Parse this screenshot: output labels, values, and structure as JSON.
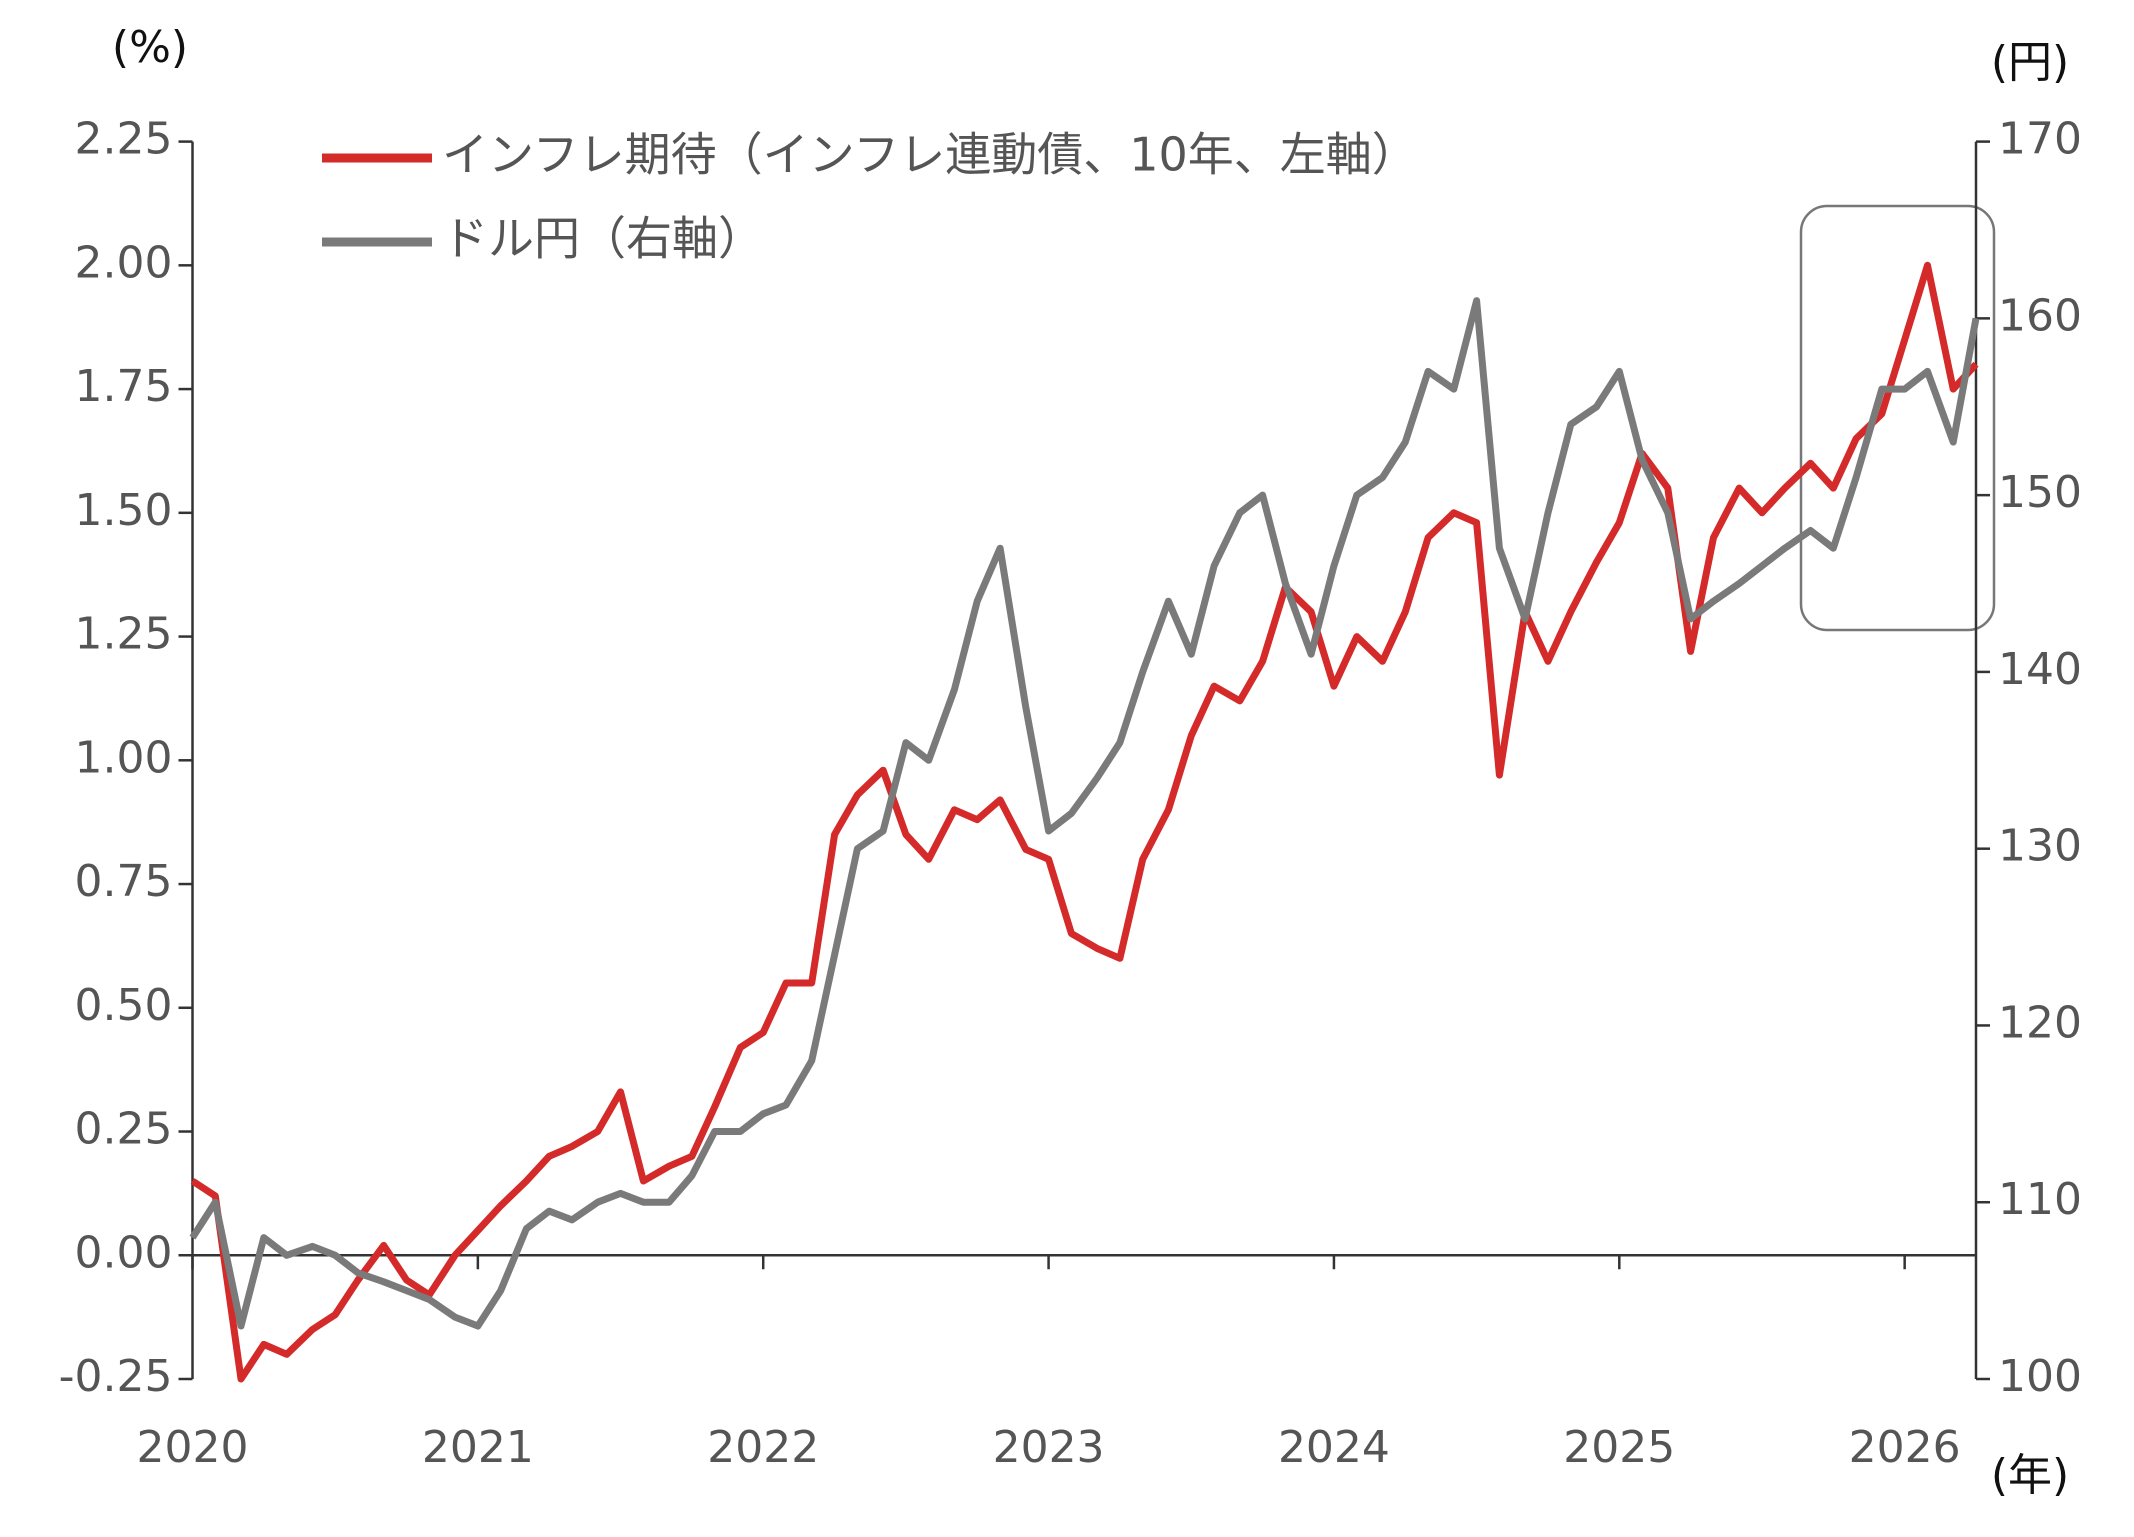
{
  "chart_data": {
    "type": "line",
    "y_label": "(%)",
    "y2_label": "(円)",
    "x_label": "(年)",
    "legend": "upper left",
    "x": [
      2020.0,
      2020.08,
      2020.17,
      2020.25,
      2020.33,
      2020.42,
      2020.5,
      2020.58,
      2020.67,
      2020.75,
      2020.83,
      2020.92,
      2021.0,
      2021.08,
      2021.17,
      2021.25,
      2021.33,
      2021.42,
      2021.5,
      2021.58,
      2021.67,
      2021.75,
      2021.83,
      2021.92,
      2022.0,
      2022.08,
      2022.17,
      2022.25,
      2022.33,
      2022.42,
      2022.5,
      2022.58,
      2022.67,
      2022.75,
      2022.83,
      2022.92,
      2023.0,
      2023.08,
      2023.17,
      2023.25,
      2023.33,
      2023.42,
      2023.5,
      2023.58,
      2023.67,
      2023.75,
      2023.83,
      2023.92,
      2024.0,
      2024.08,
      2024.17,
      2024.25,
      2024.33,
      2024.42,
      2024.5,
      2024.58,
      2024.67,
      2024.75,
      2024.83,
      2024.92,
      2025.0,
      2025.08,
      2025.17,
      2025.25,
      2025.33,
      2025.42,
      2025.5,
      2025.58,
      2025.67,
      2025.75,
      2025.83,
      2025.92,
      2026.0,
      2026.08,
      2026.17,
      2026.25
    ],
    "xlim": [
      2020,
      2026.25
    ],
    "xticks": [
      2020,
      2021,
      2022,
      2023,
      2024,
      2025,
      2026
    ],
    "ylim": [
      -0.25,
      2.25
    ],
    "yticks": [
      {
        "value": -0.25,
        "label": "-0.25"
      },
      {
        "value": 0,
        "label": "0.00"
      },
      0.25,
      {
        "value": 0.5,
        "label": "0.50"
      },
      0.75,
      {
        "value": 1,
        "label": "1.00"
      },
      1.25,
      {
        "value": 1.5,
        "label": "1.50"
      },
      1.75,
      {
        "value": 2,
        "label": "2.00"
      },
      2.25
    ],
    "y2lim": [
      100,
      170
    ],
    "y2ticks": [
      100,
      110,
      120,
      130,
      140,
      150,
      160,
      170
    ],
    "series": [
      {
        "name": "インフレ期待（インフレ連動債、10年、左軸）",
        "color": "#d42a2a",
        "values": [
          0.15,
          0.12,
          -0.25,
          -0.18,
          -0.2,
          -0.15,
          -0.12,
          -0.05,
          0.02,
          -0.05,
          -0.08,
          0.0,
          0.05,
          0.1,
          0.15,
          0.2,
          0.22,
          0.25,
          0.33,
          0.15,
          0.18,
          0.2,
          0.3,
          0.42,
          0.45,
          0.55,
          0.55,
          0.85,
          0.93,
          0.98,
          0.85,
          0.8,
          0.9,
          0.88,
          0.92,
          0.82,
          0.8,
          0.65,
          0.62,
          0.6,
          0.8,
          0.9,
          1.05,
          1.15,
          1.12,
          1.2,
          1.35,
          1.3,
          1.15,
          1.25,
          1.2,
          1.3,
          1.45,
          1.5,
          1.48,
          0.97,
          1.3,
          1.2,
          1.3,
          1.4,
          1.48,
          1.62,
          1.55,
          1.22,
          1.45,
          1.55,
          1.5,
          1.55,
          1.6,
          1.55,
          1.65,
          1.7,
          1.85,
          2.0,
          1.75,
          1.8
        ]
      },
      {
        "name": "ドル円（右軸）",
        "color": "#7a7a7a",
        "axis": "y2",
        "values": [
          108,
          110,
          103,
          108,
          107,
          107.5,
          107,
          106,
          105.5,
          105,
          104.5,
          103.5,
          103,
          105,
          108.5,
          109.5,
          109,
          110,
          110.5,
          110,
          110,
          111.5,
          114,
          114,
          115,
          115.5,
          118,
          124,
          130,
          131,
          136,
          135,
          139,
          144,
          147,
          138,
          131,
          132,
          134,
          136,
          140,
          144,
          141,
          146,
          149,
          150,
          145,
          141,
          146,
          150,
          151,
          153,
          157,
          156,
          161,
          147,
          143,
          149,
          154,
          155,
          157,
          152,
          149,
          143,
          144,
          145,
          146,
          147,
          148,
          147,
          151,
          156,
          156,
          157,
          153,
          160
        ]
      }
    ]
  }
}
